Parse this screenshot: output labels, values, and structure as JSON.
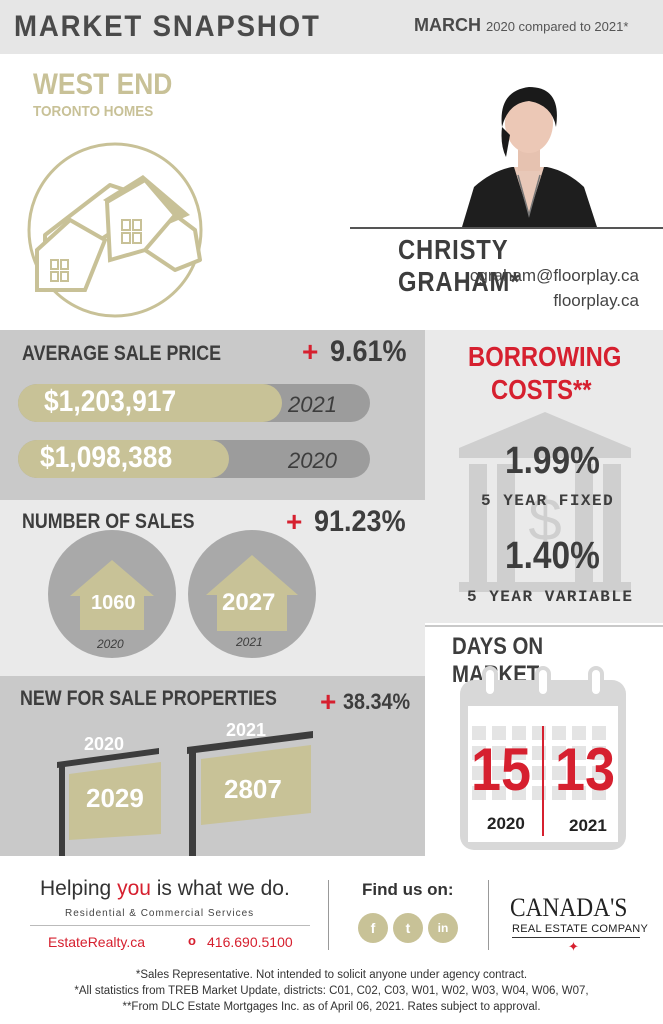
{
  "header": {
    "title": "MARKET SNAPSHOT",
    "month": "MARCH",
    "compare": "2020 compared to 2021*"
  },
  "area": {
    "title": "WEST END",
    "subtitle": "TORONTO HOMES"
  },
  "agent": {
    "name": "CHRISTY GRAHAM*",
    "email": "cgraham@floorplay.ca",
    "website": "floorplay.ca"
  },
  "avg_price": {
    "title": "AVERAGE SALE PRICE",
    "change_sign": "+",
    "change": "9.61%",
    "rows": [
      {
        "value": "$1,203,917",
        "year": "2021",
        "fill": 0.75
      },
      {
        "value": "$1,098,388",
        "year": "2020",
        "fill": 0.6
      }
    ]
  },
  "sales": {
    "title": "NUMBER OF SALES",
    "change_sign": "+",
    "change": "91.23%",
    "items": [
      {
        "value": "1060",
        "year": "2020"
      },
      {
        "value": "2027",
        "year": "2021"
      }
    ]
  },
  "new_listings": {
    "title": "NEW FOR SALE PROPERTIES",
    "change_sign": "+",
    "change": "38.34%",
    "items": [
      {
        "value": "2029",
        "year": "2020"
      },
      {
        "value": "2807",
        "year": "2021"
      }
    ]
  },
  "borrowing": {
    "title_line1": "BORROWING",
    "title_line2": "COSTS**",
    "rates": [
      {
        "rate": "1.99%",
        "label": "5 YEAR FIXED"
      },
      {
        "rate": "1.40%",
        "label": "5 YEAR VARIABLE"
      }
    ]
  },
  "days_on_market": {
    "title": "DAYS ON MARKET",
    "items": [
      {
        "value": "15",
        "year": "2020"
      },
      {
        "value": "13",
        "year": "2021"
      }
    ]
  },
  "footer": {
    "tagline_pre": "Helping ",
    "tagline_you": "you",
    "tagline_post": " is what we do.",
    "services": "Residential & Commercial Services",
    "site": "EstateRealty.ca",
    "phone": "416.690.5100",
    "find_us": "Find us on:",
    "social": [
      "f",
      "t",
      "in"
    ],
    "brand_line1": "CANADA'S",
    "brand_line2": "REAL ESTATE COMPANY"
  },
  "notes": [
    "*Sales Representative. Not intended to solicit anyone under agency contract.",
    "*All statistics from TREB Market Update, districts: C01, C02, C03, W01, W02, W03, W04, W06, W07,",
    "**From DLC Estate Mortgages Inc. as of April 06, 2021. Rates subject to approval."
  ],
  "colors": {
    "accent": "#d6202f",
    "gold": "#c8c297",
    "dark": "#3d3d3d",
    "panel_dark": "#c9c9c9",
    "panel_light": "#eaeaea"
  }
}
